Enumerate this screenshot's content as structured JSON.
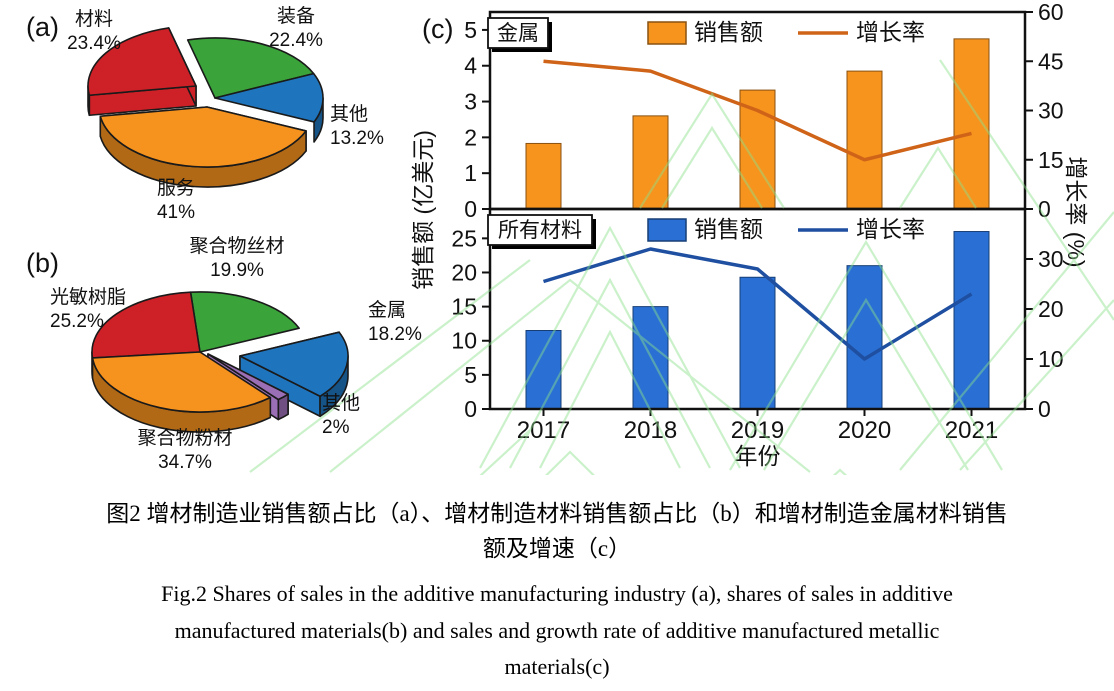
{
  "watermark_color": "#8be28b",
  "caption": {
    "zh_line1": "图2  增材制造业销售额占比（a）、增材制造材料销售额占比（b）和增材制造金属材料销售",
    "zh_line2": "额及增速（c）",
    "en_line1": "Fig.2 Shares of sales in the additive manufacturing industry (a), shares of sales in additive",
    "en_line2": "manufactured materials(b) and sales and growth rate of additive manufactured metallic",
    "en_line3": "materials(c)"
  },
  "chart_data": [
    {
      "type": "pie",
      "tag": "(a)",
      "title": "增材制造业销售额占比",
      "slices": [
        {
          "label": "材料",
          "pct": 23.4,
          "pct_label": "23.4%",
          "color": "#ce2127"
        },
        {
          "label": "装备",
          "pct": 22.4,
          "pct_label": "22.4%",
          "color": "#3aa33a"
        },
        {
          "label": "其他",
          "pct": 13.2,
          "pct_label": "13.2%",
          "color": "#1f75bd"
        },
        {
          "label": "服务",
          "pct": 41.0,
          "pct_label": "41%",
          "color": "#f6921e"
        }
      ]
    },
    {
      "type": "pie",
      "tag": "(b)",
      "title": "增材制造材料销售额占比",
      "slices": [
        {
          "label": "聚合物丝材",
          "pct": 19.9,
          "pct_label": "19.9%",
          "color": "#3aa33a"
        },
        {
          "label": "光敏树脂",
          "pct": 25.2,
          "pct_label": "25.2%",
          "color": "#ce2127"
        },
        {
          "label": "金属",
          "pct": 18.2,
          "pct_label": "18.2%",
          "color": "#1f75bd"
        },
        {
          "label": "其他",
          "pct": 2.0,
          "pct_label": "2%",
          "color": "#9b6fb5"
        },
        {
          "label": "聚合物粉材",
          "pct": 34.7,
          "pct_label": "34.7%",
          "color": "#f6921e"
        }
      ]
    },
    {
      "type": "bar+line",
      "tag": "(c)",
      "panel_label": "金属",
      "x": [
        "2017",
        "2018",
        "2019",
        "2020",
        "2021"
      ],
      "xlabel": "年份",
      "ylabel_left": "销售额 (亿美元)",
      "ylabel_right": "增长率 (%)",
      "left_ticks": [
        0,
        1,
        2,
        3,
        4,
        5
      ],
      "right_ticks": [
        0,
        15,
        30,
        45,
        60
      ],
      "ylim_left": [
        0,
        5.5
      ],
      "ylim_right": [
        0,
        60
      ],
      "series": [
        {
          "name": "销售额",
          "type": "bar",
          "color": "#f7941e",
          "values": [
            1.83,
            2.6,
            3.32,
            3.85,
            4.75
          ]
        },
        {
          "name": "增长率",
          "type": "line",
          "color": "#cf6418",
          "values": [
            45,
            42,
            30,
            15,
            23
          ]
        }
      ]
    },
    {
      "type": "bar+line",
      "tag": "(c)",
      "panel_label": "所有材料",
      "x": [
        "2017",
        "2018",
        "2019",
        "2020",
        "2021"
      ],
      "xlabel": "年份",
      "ylabel_left": "销售额 (亿美元)",
      "ylabel_right": "增长率 (%)",
      "left_ticks": [
        0,
        5,
        10,
        15,
        20,
        25
      ],
      "right_ticks": [
        0,
        10,
        20,
        30
      ],
      "ylim_left": [
        0,
        29.3
      ],
      "ylim_right": [
        0,
        40
      ],
      "series": [
        {
          "name": "销售额",
          "type": "bar",
          "color": "#2a70d4",
          "values": [
            11.5,
            15,
            19.3,
            21,
            26
          ]
        },
        {
          "name": "增长率",
          "type": "line",
          "color": "#1f4fa0",
          "values": [
            25.5,
            32,
            28,
            10,
            23
          ]
        }
      ]
    }
  ]
}
